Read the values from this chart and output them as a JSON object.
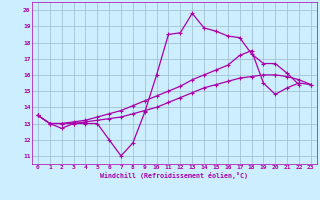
{
  "xlabel": "Windchill (Refroidissement éolien,°C)",
  "background_color": "#cceeff",
  "line_color": "#aa00aa",
  "xlim": [
    -0.5,
    23.5
  ],
  "ylim": [
    10.5,
    20.5
  ],
  "xticks": [
    0,
    1,
    2,
    3,
    4,
    5,
    6,
    7,
    8,
    9,
    10,
    11,
    12,
    13,
    14,
    15,
    16,
    17,
    18,
    19,
    20,
    21,
    22,
    23
  ],
  "yticks": [
    11,
    12,
    13,
    14,
    15,
    16,
    17,
    18,
    19,
    20
  ],
  "grid_color": "#99bbcc",
  "series": [
    {
      "x": [
        0,
        1,
        2,
        3,
        4,
        5,
        6,
        7,
        8,
        9,
        10,
        11,
        12,
        13,
        14,
        15,
        16,
        17,
        18,
        19,
        20,
        21,
        22
      ],
      "y": [
        13.5,
        13.0,
        12.7,
        13.0,
        13.0,
        13.0,
        12.0,
        11.0,
        11.8,
        13.7,
        16.0,
        18.5,
        18.6,
        19.8,
        18.9,
        18.7,
        18.4,
        18.3,
        17.3,
        16.7,
        16.7,
        16.1,
        15.4
      ]
    },
    {
      "x": [
        0,
        1,
        2,
        3,
        4,
        5,
        6,
        7,
        8,
        9,
        10,
        11,
        12,
        13,
        14,
        15,
        16,
        17,
        18,
        19,
        20,
        21,
        22,
        23
      ],
      "y": [
        13.5,
        13.0,
        13.0,
        13.0,
        13.1,
        13.2,
        13.3,
        13.4,
        13.6,
        13.8,
        14.0,
        14.3,
        14.6,
        14.9,
        15.2,
        15.4,
        15.6,
        15.8,
        15.9,
        16.0,
        16.0,
        15.9,
        15.7,
        15.4
      ]
    },
    {
      "x": [
        0,
        1,
        2,
        3,
        4,
        5,
        6,
        7,
        8,
        9,
        10,
        11,
        12,
        13,
        14,
        15,
        16,
        17,
        18,
        19,
        20,
        21,
        22,
        23
      ],
      "y": [
        13.5,
        13.0,
        13.0,
        13.1,
        13.2,
        13.4,
        13.6,
        13.8,
        14.1,
        14.4,
        14.7,
        15.0,
        15.3,
        15.7,
        16.0,
        16.3,
        16.6,
        17.2,
        17.5,
        15.5,
        14.8,
        15.2,
        15.5,
        15.4
      ]
    }
  ]
}
